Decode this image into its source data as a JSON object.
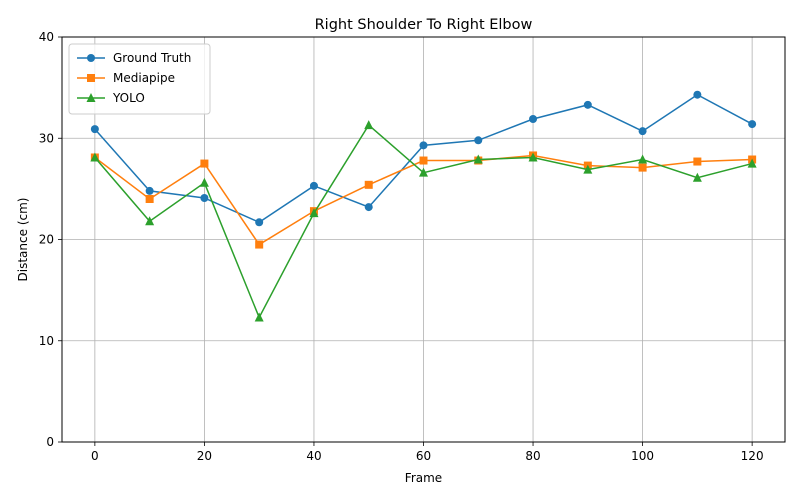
{
  "chart_data": {
    "type": "line",
    "title": "Right Shoulder To Right Elbow",
    "xlabel": "Frame",
    "ylabel": "Distance (cm)",
    "x": [
      0,
      10,
      20,
      30,
      40,
      50,
      60,
      70,
      80,
      90,
      100,
      110,
      120
    ],
    "xlim": [
      -6,
      126
    ],
    "ylim": [
      0,
      40
    ],
    "xticks": [
      0,
      20,
      40,
      60,
      80,
      100,
      120
    ],
    "yticks": [
      0,
      10,
      20,
      30,
      40
    ],
    "grid": true,
    "legend_position": "top-left",
    "series": [
      {
        "name": "Ground Truth",
        "color": "#1f77b4",
        "marker": "circle",
        "values": [
          30.9,
          24.8,
          24.1,
          21.7,
          25.3,
          23.2,
          29.3,
          29.8,
          31.9,
          33.3,
          30.7,
          34.3,
          31.4
        ]
      },
      {
        "name": "Mediapipe",
        "color": "#ff7f0e",
        "marker": "square",
        "values": [
          28.1,
          24.0,
          27.5,
          19.5,
          22.8,
          25.4,
          27.8,
          27.8,
          28.3,
          27.3,
          27.1,
          27.7,
          27.9
        ]
      },
      {
        "name": "YOLO",
        "color": "#2ca02c",
        "marker": "triangle",
        "values": [
          28.1,
          21.8,
          25.6,
          12.3,
          22.6,
          31.3,
          26.6,
          27.9,
          28.1,
          26.9,
          27.9,
          26.1,
          27.5
        ]
      }
    ]
  }
}
